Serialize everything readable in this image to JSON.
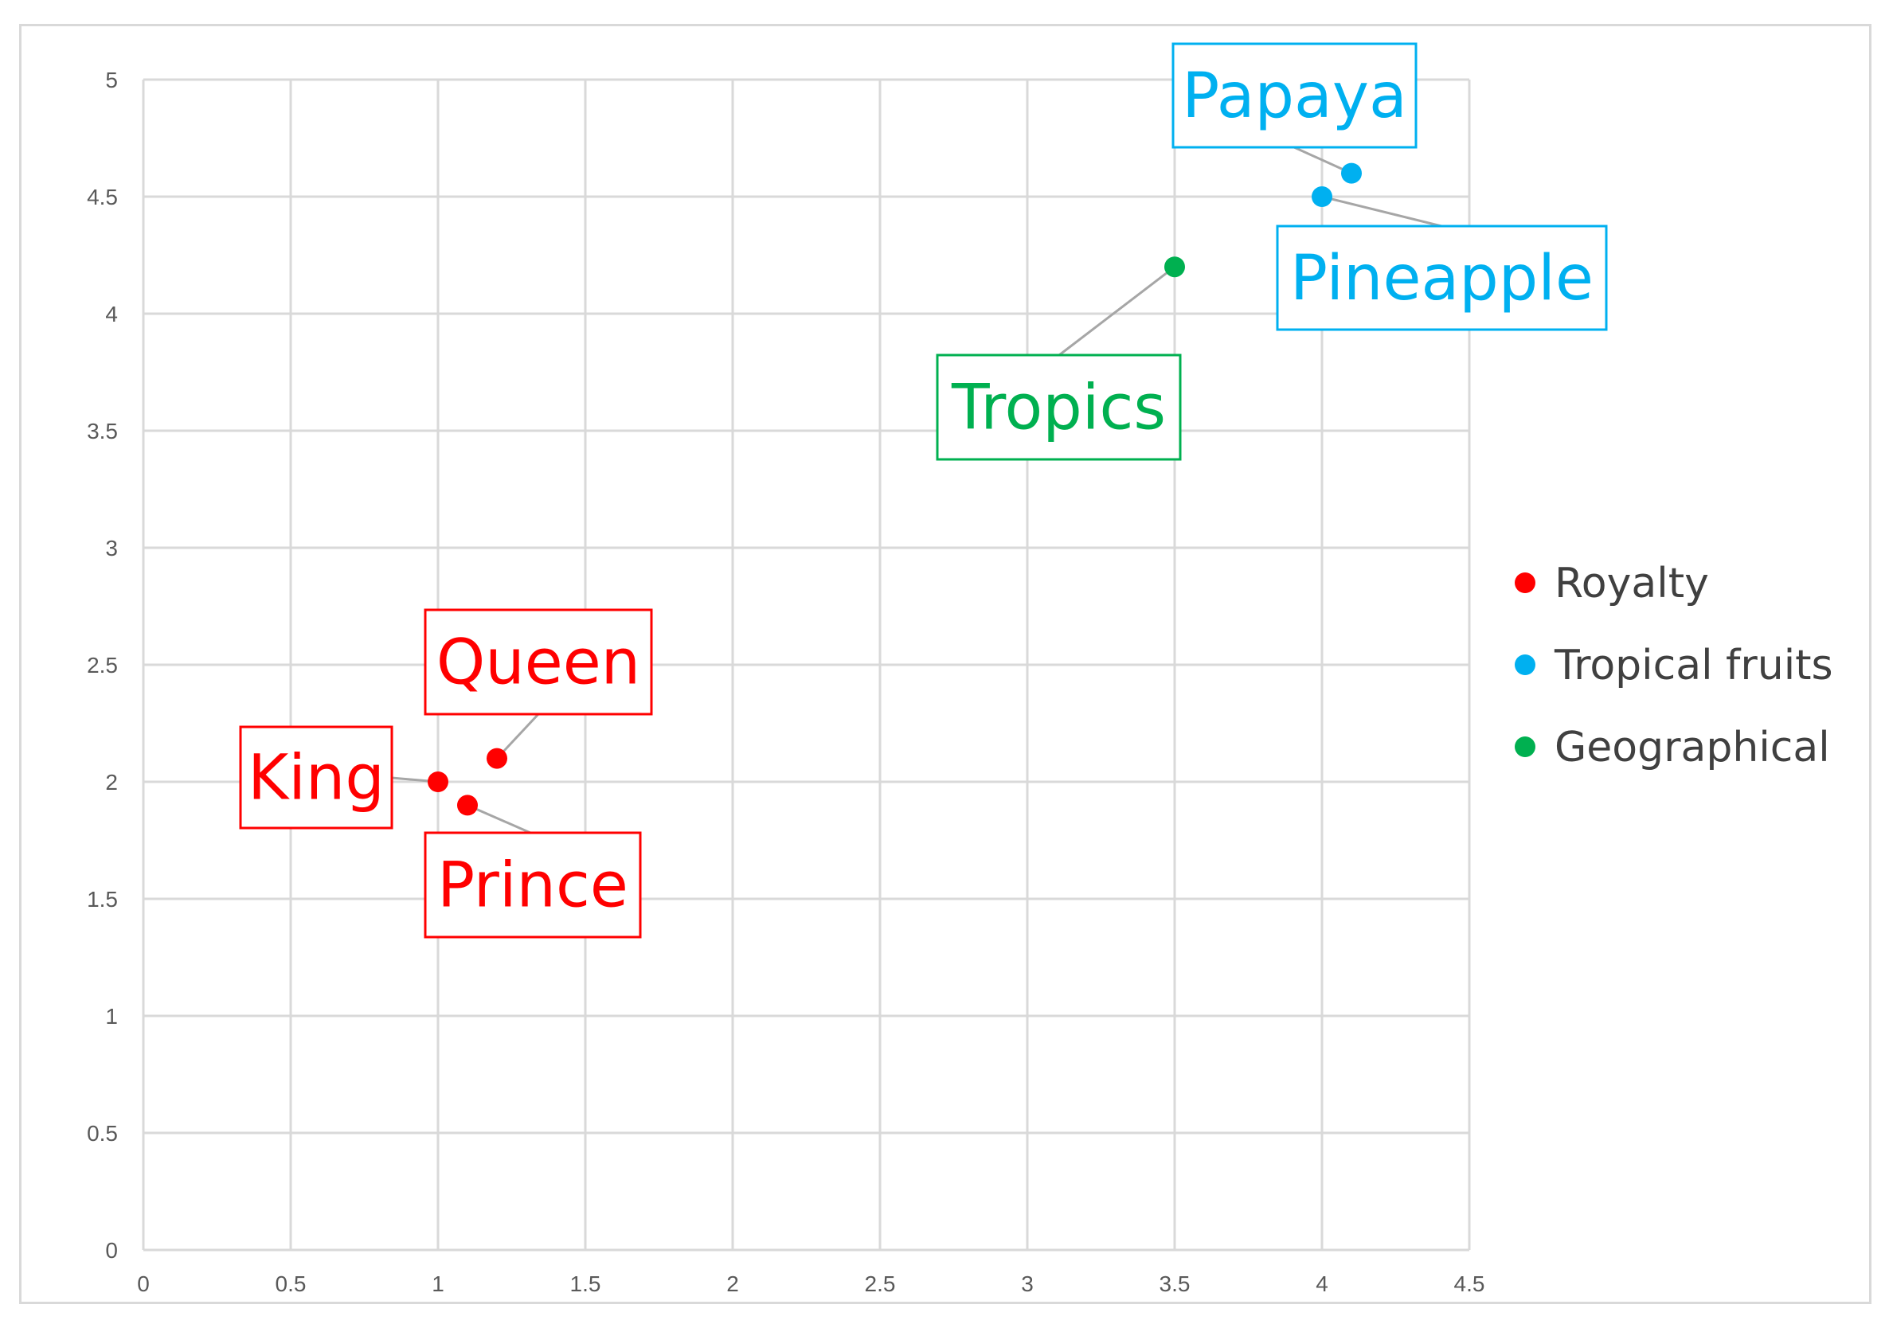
{
  "chart_data": {
    "type": "scatter",
    "title": "",
    "xlabel": "",
    "ylabel": "",
    "xlim": [
      0,
      4.5
    ],
    "ylim": [
      0,
      5
    ],
    "x_ticks": [
      "0",
      "0.5",
      "1",
      "1.5",
      "2",
      "2.5",
      "3",
      "3.5",
      "4",
      "4.5"
    ],
    "y_ticks": [
      "0",
      "0.5",
      "1",
      "1.5",
      "2",
      "2.5",
      "3",
      "3.5",
      "4",
      "4.5",
      "5"
    ],
    "grid": true,
    "legend_position": "right",
    "series": [
      {
        "name": "Royalty",
        "color": "#ff0000",
        "points": [
          {
            "x": 1.0,
            "y": 2.0,
            "label": "King"
          },
          {
            "x": 1.2,
            "y": 2.1,
            "label": "Queen"
          },
          {
            "x": 1.1,
            "y": 1.9,
            "label": "Prince"
          }
        ]
      },
      {
        "name": "Tropical fruits",
        "color": "#00b0f0",
        "points": [
          {
            "x": 4.1,
            "y": 4.6,
            "label": "Papaya"
          },
          {
            "x": 4.0,
            "y": 4.5,
            "label": "Pineapple"
          }
        ]
      },
      {
        "name": "Geographical",
        "color": "#00b050",
        "points": [
          {
            "x": 3.5,
            "y": 4.2,
            "label": "Tropics"
          }
        ]
      }
    ]
  }
}
